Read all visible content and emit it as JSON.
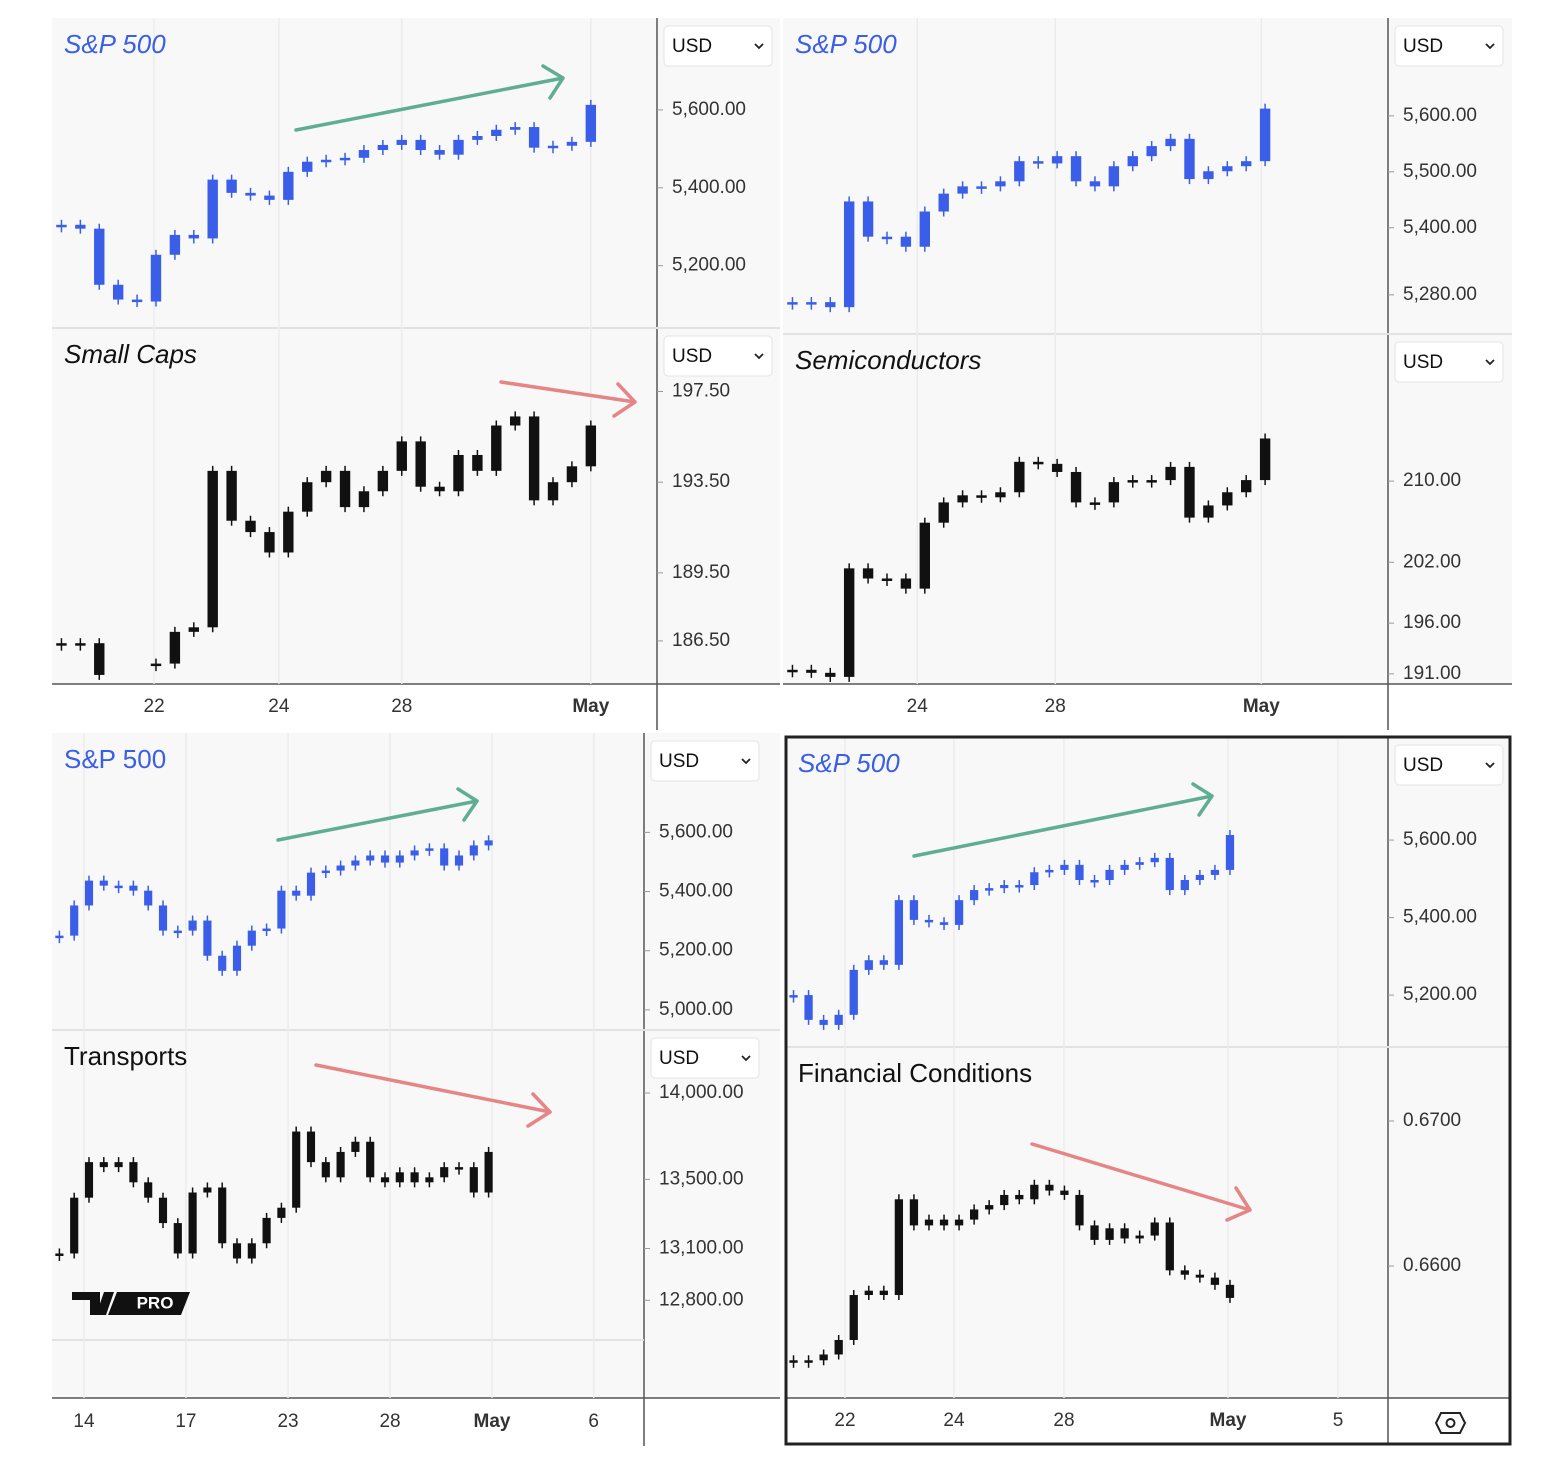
{
  "watermark": "PRO",
  "chart_data": [
    {
      "type": "candlestick",
      "title": "S&P 500",
      "title_italic": true,
      "currency": "USD",
      "color": "#3a5ee8",
      "values": [
        5305,
        5295,
        5151,
        5113,
        5108,
        5228,
        5279,
        5270,
        5421,
        5387,
        5380,
        5369,
        5441,
        5467,
        5472,
        5477,
        5497,
        5510,
        5523,
        5497,
        5485,
        5523,
        5533,
        5549,
        5556,
        5503,
        5508,
        5518,
        5613,
        null
      ],
      "xlim": [
        0,
        32
      ],
      "ylim": [
        5040,
        5836
      ],
      "yticks": [
        {
          "value": 5600,
          "label": "5,600.00"
        },
        {
          "value": 5400,
          "label": "5,400.00"
        },
        {
          "value": 5200,
          "label": "5,200.00"
        }
      ]
    },
    {
      "type": "candlestick",
      "title": "Small Caps",
      "title_italic": true,
      "currency": "USD",
      "color": "#111111",
      "values": [
        186.4,
        186.4,
        185.0,
        null,
        null,
        185.5,
        186.9,
        187.1,
        194.0,
        191.8,
        191.3,
        190.4,
        192.2,
        193.5,
        194.0,
        192.4,
        193.1,
        194.0,
        195.3,
        193.3,
        193.1,
        194.7,
        194.0,
        196.0,
        196.4,
        192.7,
        193.5,
        194.2,
        196.0,
        null
      ],
      "xlim": [
        0,
        32
      ],
      "ylim": [
        184.6,
        200.3
      ],
      "yticks": [
        {
          "value": 197.5,
          "label": "197.50"
        },
        {
          "value": 193.5,
          "label": "193.50"
        },
        {
          "value": 189.5,
          "label": "189.50"
        },
        {
          "value": 186.5,
          "label": "186.50"
        }
      ],
      "xticks": [
        {
          "value": 5.4,
          "label": "22"
        },
        {
          "value": 12,
          "label": "24"
        },
        {
          "value": 18.5,
          "label": "28"
        },
        {
          "value": 28.5,
          "label": "May"
        }
      ]
    },
    {
      "type": "candlestick",
      "title": "S&P 500",
      "title_italic": true,
      "currency": "USD",
      "color": "#3a5ee8",
      "values": [
        5267,
        5267,
        5258,
        5447,
        5384,
        5384,
        5366,
        5429,
        5461,
        5474,
        5474,
        5483,
        5519,
        5515,
        5528,
        5483,
        5474,
        5510,
        5528,
        5546,
        5559,
        5487,
        5501,
        5510,
        5519,
        5613
      ],
      "xlim": [
        0,
        32
      ],
      "ylim": [
        5210,
        5775
      ],
      "yticks": [
        {
          "value": 5600,
          "label": "5,600.00"
        },
        {
          "value": 5500,
          "label": "5,500.00"
        },
        {
          "value": 5400,
          "label": "5,400.00"
        },
        {
          "value": 5280,
          "label": "5,280.00"
        }
      ]
    },
    {
      "type": "candlestick",
      "title": "Semiconductors",
      "title_italic": true,
      "currency": "USD",
      "color": "#111111",
      "values": [
        191.4,
        191.1,
        190.7,
        201.4,
        200.4,
        200.4,
        199.4,
        205.9,
        207.9,
        208.6,
        208.4,
        208.9,
        211.9,
        211.7,
        210.9,
        207.9,
        207.9,
        209.9,
        210.1,
        210.1,
        211.4,
        206.4,
        207.6,
        208.9,
        210.1,
        214.2
      ],
      "xlim": [
        0,
        32
      ],
      "ylim": [
        190,
        224.5
      ],
      "yticks": [
        {
          "value": 210,
          "label": "210.00"
        },
        {
          "value": 202,
          "label": "202.00"
        },
        {
          "value": 196,
          "label": "196.00"
        },
        {
          "value": 191,
          "label": "191.00"
        }
      ],
      "xticks": [
        {
          "value": 7.1,
          "label": "24"
        },
        {
          "value": 14.4,
          "label": "28"
        },
        {
          "value": 25.3,
          "label": "May"
        }
      ]
    },
    {
      "type": "candlestick",
      "title": "S&P 500",
      "title_italic": false,
      "currency": "USD",
      "color": "#3a5ee8",
      "values": [
        5251,
        5353,
        5437,
        5420,
        5420,
        5403,
        5353,
        5268,
        5268,
        5302,
        5183,
        5132,
        5217,
        5268,
        5275,
        5403,
        5386,
        5464,
        5471,
        5488,
        5505,
        5522,
        5498,
        5522,
        5539,
        5546,
        5488,
        5522,
        5556,
        5573
      ],
      "xlim": [
        0,
        40
      ],
      "ylim": [
        4932,
        5936
      ],
      "yticks": [
        {
          "value": 5600,
          "label": "5,600.00"
        },
        {
          "value": 5400,
          "label": "5,400.00"
        },
        {
          "value": 5200,
          "label": "5,200.00"
        },
        {
          "value": 5000,
          "label": "5,000.00"
        }
      ]
    },
    {
      "type": "candlestick",
      "title": "Transports",
      "title_italic": false,
      "currency": "USD",
      "color": "#111111",
      "values": [
        13071,
        13394,
        13600,
        13571,
        13600,
        13483,
        13394,
        13247,
        13071,
        13424,
        13453,
        13130,
        13042,
        13130,
        13277,
        13336,
        13777,
        13600,
        13512,
        13659,
        13718,
        13512,
        13483,
        13541,
        13483,
        13512,
        13571,
        13571,
        13424,
        13659
      ],
      "xlim": [
        0,
        40
      ],
      "ylim": [
        12570,
        14365
      ],
      "yticks": [
        {
          "value": 14000,
          "label": "14,000.00"
        },
        {
          "value": 13500,
          "label": "13,500.00"
        },
        {
          "value": 13100,
          "label": "13,100.00"
        },
        {
          "value": 12800,
          "label": "12,800.00"
        }
      ],
      "xticks": [
        {
          "value": 2.16,
          "label": "14"
        },
        {
          "value": 9.05,
          "label": "17"
        },
        {
          "value": 15.95,
          "label": "23"
        },
        {
          "value": 22.84,
          "label": "28"
        },
        {
          "value": 29.73,
          "label": "May"
        },
        {
          "value": 36.6,
          "label": "6"
        }
      ]
    },
    {
      "type": "candlestick",
      "title": "S&P 500",
      "title_italic": true,
      "currency": "USD",
      "color": "#3a5ee8",
      "values": [
        5200,
        5136,
        5123,
        5149,
        5265,
        5290,
        5278,
        5445,
        5394,
        5388,
        5381,
        5445,
        5471,
        5476,
        5484,
        5484,
        5517,
        5523,
        5536,
        5497,
        5497,
        5523,
        5536,
        5543,
        5554,
        5471,
        5497,
        5510,
        5523,
        5613
      ],
      "xlim": [
        0,
        40
      ],
      "ylim": [
        5066,
        5866
      ],
      "yticks": [
        {
          "value": 5600,
          "label": "5,600.00"
        },
        {
          "value": 5400,
          "label": "5,400.00"
        },
        {
          "value": 5200,
          "label": "5,200.00"
        }
      ]
    },
    {
      "type": "candlestick",
      "title": "Financial Conditions",
      "title_italic": false,
      "color": "#111111",
      "values": [
        0.6535,
        0.6535,
        0.6539,
        0.6549,
        0.658,
        0.6583,
        0.658,
        0.6646,
        0.6628,
        0.6632,
        0.6628,
        0.6632,
        0.6639,
        0.6642,
        0.6649,
        0.6646,
        0.6656,
        0.6652,
        0.6649,
        0.6628,
        0.6618,
        0.6626,
        0.6619,
        0.6621,
        0.663,
        0.6597,
        0.6594,
        0.6592,
        0.6587,
        0.6578
      ],
      "xlim": [
        0,
        40
      ],
      "ylim": [
        0.6509,
        0.6751
      ],
      "yticks": [
        {
          "value": 0.67,
          "label": "0.6700"
        },
        {
          "value": 0.66,
          "label": "0.6600"
        }
      ],
      "xticks": [
        {
          "value": 3.92,
          "label": "22"
        },
        {
          "value": 11.16,
          "label": "24"
        },
        {
          "value": 18.47,
          "label": "28"
        },
        {
          "value": 29.37,
          "label": "May"
        },
        {
          "value": 36.68,
          "label": "5"
        }
      ]
    }
  ]
}
